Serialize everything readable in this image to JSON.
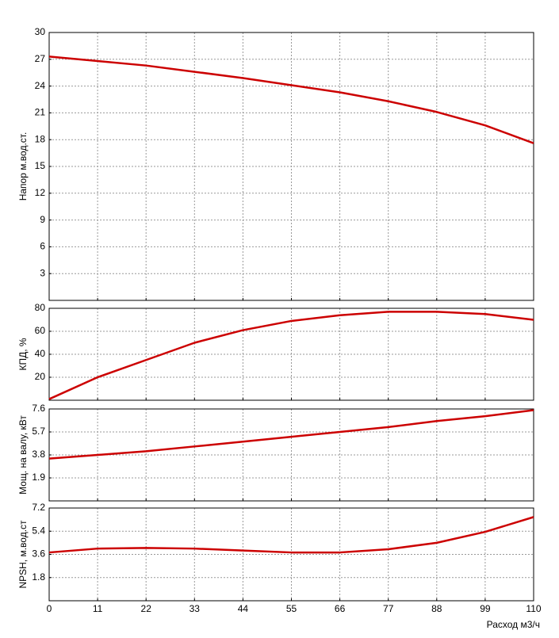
{
  "chart_data": [
    {
      "type": "line",
      "y_label": "Напор м.вод.ст.",
      "xlim": [
        0,
        110
      ],
      "xticks": [
        0,
        11,
        22,
        33,
        44,
        55,
        66,
        77,
        88,
        99,
        110
      ],
      "ylim": [
        0,
        30
      ],
      "yticks": [
        3,
        6,
        9,
        12,
        15,
        18,
        21,
        24,
        27,
        30
      ],
      "grid": true,
      "x": [
        0,
        11,
        22,
        33,
        44,
        55,
        66,
        77,
        88,
        99,
        110
      ],
      "series": [
        {
          "color": "#cc0000",
          "values": [
            27.3,
            26.8,
            26.3,
            25.6,
            24.9,
            24.1,
            23.3,
            22.3,
            21.1,
            19.6,
            17.6
          ]
        }
      ]
    },
    {
      "type": "line",
      "y_label": "КПД, %",
      "xlim": [
        0,
        110
      ],
      "xticks": [
        0,
        11,
        22,
        33,
        44,
        55,
        66,
        77,
        88,
        99,
        110
      ],
      "ylim": [
        0,
        80
      ],
      "yticks": [
        20,
        40,
        60,
        80
      ],
      "grid": true,
      "x": [
        0,
        11,
        22,
        33,
        44,
        55,
        66,
        77,
        88,
        99,
        110
      ],
      "series": [
        {
          "color": "#cc0000",
          "values": [
            1,
            20,
            35,
            50,
            61,
            69,
            74,
            77,
            77,
            75,
            70
          ]
        }
      ]
    },
    {
      "type": "line",
      "y_label": "Мощ. на валу, кВт",
      "xlim": [
        0,
        110
      ],
      "xticks": [
        0,
        11,
        22,
        33,
        44,
        55,
        66,
        77,
        88,
        99,
        110
      ],
      "ylim": [
        0,
        7.6
      ],
      "yticks": [
        1.9,
        3.8,
        5.7,
        7.6
      ],
      "grid": true,
      "x": [
        0,
        11,
        22,
        33,
        44,
        55,
        66,
        77,
        88,
        99,
        110
      ],
      "series": [
        {
          "color": "#cc0000",
          "values": [
            3.5,
            3.8,
            4.1,
            4.5,
            4.9,
            5.3,
            5.7,
            6.1,
            6.6,
            7.0,
            7.5
          ]
        }
      ]
    },
    {
      "type": "line",
      "y_label": "NPSH, м.вод.ст",
      "x_label": "Расход м3/ч",
      "xlim": [
        0,
        110
      ],
      "xticks": [
        0,
        11,
        22,
        33,
        44,
        55,
        66,
        77,
        88,
        99,
        110
      ],
      "ylim": [
        0,
        7.2
      ],
      "yticks": [
        1.8,
        3.6,
        5.4,
        7.2
      ],
      "grid": true,
      "x": [
        0,
        11,
        22,
        33,
        44,
        55,
        66,
        77,
        88,
        99,
        110
      ],
      "series": [
        {
          "color": "#cc0000",
          "values": [
            3.75,
            4.05,
            4.1,
            4.05,
            3.9,
            3.75,
            3.75,
            4.0,
            4.5,
            5.35,
            6.5
          ]
        }
      ]
    }
  ]
}
